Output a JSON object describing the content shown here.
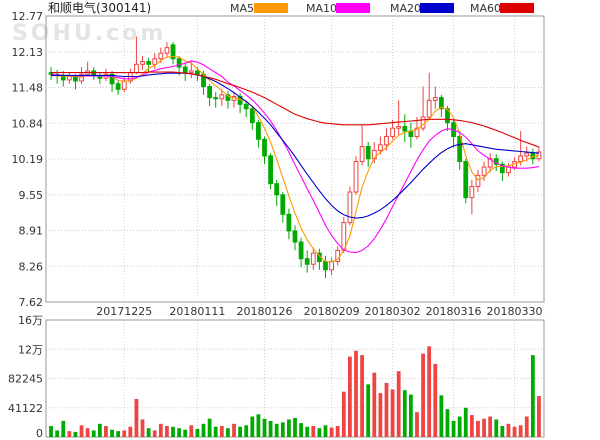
{
  "watermark": "SOHU.com",
  "chart_data": {
    "type": "candlestick",
    "title": "和顺电气(300141)",
    "legend": [
      {
        "name": "MA5",
        "color": "#ff9900"
      },
      {
        "name": "MA10",
        "color": "#ff00ff"
      },
      {
        "name": "MA20",
        "color": "#0000cc"
      },
      {
        "name": "MA60",
        "color": "#dd0000"
      }
    ],
    "price_axis": {
      "ticks": [
        "12.77",
        "12.13",
        "11.48",
        "10.84",
        "10.19",
        "9.55",
        "8.91",
        "8.26",
        "7.62"
      ],
      "ylim": [
        7.62,
        12.77
      ]
    },
    "volume_axis": {
      "ticks": [
        "16万",
        "12万",
        "82245",
        "41122",
        "0"
      ],
      "ylim": [
        0,
        160000
      ]
    },
    "date_labels": [
      {
        "label": "20171225",
        "index": 12
      },
      {
        "label": "20180111",
        "index": 24
      },
      {
        "label": "20180126",
        "index": 35
      },
      {
        "label": "20180209",
        "index": 46
      },
      {
        "label": "20180302",
        "index": 56
      },
      {
        "label": "20180316",
        "index": 66
      },
      {
        "label": "20180330",
        "index": 76
      }
    ],
    "colors": {
      "up": "#ee4444",
      "down": "#00aa00"
    },
    "candles": [
      [
        11.75,
        11.72,
        11.85,
        11.62
      ],
      [
        11.72,
        11.7,
        11.8,
        11.55
      ],
      [
        11.7,
        11.62,
        11.78,
        11.5
      ],
      [
        11.62,
        11.68,
        11.75,
        11.55
      ],
      [
        11.68,
        11.6,
        11.72,
        11.45
      ],
      [
        11.6,
        11.72,
        11.85,
        11.55
      ],
      [
        11.72,
        11.78,
        11.95,
        11.68
      ],
      [
        11.78,
        11.7,
        11.85,
        11.62
      ],
      [
        11.7,
        11.65,
        11.75,
        11.55
      ],
      [
        11.65,
        11.72,
        11.82,
        11.6
      ],
      [
        11.72,
        11.55,
        11.78,
        11.4
      ],
      [
        11.55,
        11.45,
        11.6,
        11.35
      ],
      [
        11.45,
        11.6,
        11.68,
        11.4
      ],
      [
        11.6,
        11.75,
        11.82,
        11.55
      ],
      [
        11.75,
        11.9,
        12.4,
        11.72
      ],
      [
        11.9,
        11.95,
        12.05,
        11.8
      ],
      [
        11.95,
        11.9,
        12.02,
        11.75
      ],
      [
        11.9,
        12.0,
        12.1,
        11.82
      ],
      [
        12.0,
        12.1,
        12.2,
        11.92
      ],
      [
        12.1,
        12.2,
        12.3,
        12.02
      ],
      [
        12.25,
        12.0,
        12.3,
        11.9
      ],
      [
        12.0,
        11.85,
        12.05,
        11.7
      ],
      [
        11.85,
        11.75,
        11.92,
        11.6
      ],
      [
        11.75,
        11.78,
        11.95,
        11.65
      ],
      [
        11.78,
        11.72,
        11.85,
        11.6
      ],
      [
        11.72,
        11.5,
        11.78,
        11.35
      ],
      [
        11.5,
        11.3,
        11.55,
        11.15
      ],
      [
        11.3,
        11.28,
        11.4,
        11.12
      ],
      [
        11.28,
        11.35,
        11.45,
        11.15
      ],
      [
        11.35,
        11.25,
        11.42,
        11.1
      ],
      [
        11.25,
        11.32,
        11.4,
        11.12
      ],
      [
        11.32,
        11.18,
        11.38,
        11.02
      ],
      [
        11.18,
        11.1,
        11.25,
        10.95
      ],
      [
        11.1,
        10.85,
        11.15,
        10.72
      ],
      [
        10.85,
        10.55,
        10.9,
        10.4
      ],
      [
        10.55,
        10.25,
        10.6,
        10.1
      ],
      [
        10.25,
        9.75,
        10.3,
        9.65
      ],
      [
        9.75,
        9.55,
        9.82,
        9.35
      ],
      [
        9.55,
        9.2,
        9.6,
        9.05
      ],
      [
        9.2,
        8.9,
        9.3,
        8.75
      ],
      [
        8.9,
        8.7,
        9.0,
        8.55
      ],
      [
        8.7,
        8.4,
        8.78,
        8.25
      ],
      [
        8.4,
        8.3,
        8.55,
        8.15
      ],
      [
        8.3,
        8.5,
        8.6,
        8.2
      ],
      [
        8.5,
        8.35,
        8.58,
        8.2
      ],
      [
        8.35,
        8.2,
        8.45,
        8.05
      ],
      [
        8.2,
        8.35,
        8.42,
        8.1
      ],
      [
        8.35,
        8.55,
        8.62,
        8.28
      ],
      [
        8.55,
        9.05,
        9.15,
        8.5
      ],
      [
        9.05,
        9.6,
        9.7,
        9.0
      ],
      [
        9.6,
        10.15,
        10.25,
        9.55
      ],
      [
        10.15,
        10.42,
        10.8,
        10.08
      ],
      [
        10.42,
        10.2,
        10.5,
        10.05
      ],
      [
        10.2,
        10.35,
        10.5,
        10.12
      ],
      [
        10.35,
        10.45,
        10.6,
        10.28
      ],
      [
        10.45,
        10.6,
        10.75,
        10.35
      ],
      [
        10.6,
        10.75,
        10.9,
        10.55
      ],
      [
        10.75,
        10.78,
        11.25,
        10.62
      ],
      [
        10.78,
        10.7,
        11.0,
        10.5
      ],
      [
        10.7,
        10.6,
        10.85,
        10.4
      ],
      [
        10.6,
        10.75,
        10.95,
        10.55
      ],
      [
        10.75,
        10.95,
        11.5,
        10.7
      ],
      [
        10.95,
        11.25,
        11.75,
        10.9
      ],
      [
        11.25,
        11.3,
        11.5,
        11.1
      ],
      [
        11.3,
        11.1,
        11.35,
        10.95
      ],
      [
        11.1,
        10.85,
        11.15,
        10.7
      ],
      [
        10.85,
        10.6,
        10.9,
        10.4
      ],
      [
        10.6,
        10.15,
        10.7,
        10.0
      ],
      [
        10.15,
        9.5,
        10.2,
        9.4
      ],
      [
        9.5,
        9.7,
        9.82,
        9.2
      ],
      [
        9.7,
        9.9,
        10.0,
        9.6
      ],
      [
        9.9,
        10.05,
        10.15,
        9.8
      ],
      [
        10.05,
        10.2,
        10.3,
        9.95
      ],
      [
        10.2,
        10.1,
        10.28,
        9.98
      ],
      [
        10.1,
        9.95,
        10.15,
        9.8
      ],
      [
        9.95,
        10.05,
        10.12,
        9.88
      ],
      [
        10.05,
        10.15,
        10.22,
        10.0
      ],
      [
        10.15,
        10.25,
        10.7,
        10.08
      ],
      [
        10.25,
        10.3,
        10.42,
        10.15
      ],
      [
        10.3,
        10.2,
        10.38,
        10.1
      ],
      [
        10.2,
        10.32,
        10.42,
        10.15
      ]
    ],
    "volume": [
      15000,
      9000,
      22000,
      8000,
      7000,
      16000,
      12000,
      9000,
      18000,
      15000,
      10000,
      8000,
      9000,
      14000,
      52000,
      24000,
      12000,
      9000,
      18000,
      15000,
      14000,
      12000,
      10000,
      16000,
      11000,
      18000,
      25000,
      14000,
      15000,
      12000,
      18000,
      14000,
      16000,
      28000,
      31000,
      25000,
      22000,
      18000,
      20000,
      24000,
      26000,
      19000,
      14000,
      15000,
      12000,
      16000,
      13000,
      15000,
      62000,
      110000,
      118000,
      112000,
      72000,
      88000,
      60000,
      74000,
      65000,
      90000,
      64000,
      58000,
      34000,
      114000,
      124000,
      100000,
      57000,
      38000,
      22000,
      28000,
      40000,
      30000,
      22000,
      25000,
      28000,
      24000,
      15000,
      18000,
      14000,
      16000,
      28000,
      112000,
      56000
    ],
    "ma": {
      "MA5": [
        11.7,
        11.69,
        11.69,
        11.68,
        11.68,
        11.67,
        11.7,
        11.7,
        11.69,
        11.71,
        11.68,
        11.61,
        11.59,
        11.61,
        11.65,
        11.73,
        11.83,
        11.88,
        11.97,
        12.03,
        12.04,
        12.03,
        11.96,
        11.92,
        11.82,
        11.72,
        11.61,
        11.51,
        11.43,
        11.33,
        11.3,
        11.27,
        11.24,
        11.14,
        10.96,
        10.75,
        10.5,
        10.19,
        9.86,
        9.53,
        9.22,
        8.95,
        8.74,
        8.58,
        8.45,
        8.35,
        8.34,
        8.39,
        8.55,
        8.81,
        9.25,
        9.69,
        9.98,
        10.22,
        10.31,
        10.4,
        10.52,
        10.62,
        10.68,
        10.7,
        10.73,
        10.82,
        10.91,
        11.06,
        11.13,
        11.09,
        10.94,
        10.65,
        10.25,
        9.96,
        9.82,
        9.86,
        9.99,
        10.06,
        10.06,
        10.07,
        10.11,
        10.14,
        10.18,
        10.24,
        10.26
      ],
      "MA10": [
        11.72,
        11.71,
        11.7,
        11.7,
        11.69,
        11.69,
        11.69,
        11.69,
        11.69,
        11.69,
        11.68,
        11.66,
        11.64,
        11.64,
        11.66,
        11.7,
        11.76,
        11.79,
        11.82,
        11.84,
        11.86,
        11.89,
        11.92,
        11.96,
        11.94,
        11.89,
        11.82,
        11.75,
        11.68,
        11.58,
        11.51,
        11.43,
        11.35,
        11.26,
        11.15,
        11.02,
        10.88,
        10.71,
        10.52,
        10.32,
        10.09,
        9.88,
        9.66,
        9.45,
        9.23,
        9.0,
        8.82,
        8.67,
        8.56,
        8.52,
        8.51,
        8.55,
        8.63,
        8.76,
        8.93,
        9.12,
        9.34,
        9.55,
        9.76,
        9.97,
        10.18,
        10.36,
        10.52,
        10.62,
        10.7,
        10.74,
        10.72,
        10.67,
        10.59,
        10.47,
        10.34,
        10.26,
        10.19,
        10.12,
        10.07,
        10.05,
        10.03,
        10.03,
        10.03,
        10.04,
        10.06
      ],
      "MA20": [
        11.7,
        11.7,
        11.7,
        11.7,
        11.7,
        11.7,
        11.7,
        11.7,
        11.7,
        11.7,
        11.7,
        11.69,
        11.68,
        11.68,
        11.68,
        11.69,
        11.71,
        11.72,
        11.73,
        11.74,
        11.74,
        11.74,
        11.74,
        11.73,
        11.71,
        11.68,
        11.64,
        11.59,
        11.53,
        11.46,
        11.39,
        11.31,
        11.23,
        11.14,
        11.04,
        10.93,
        10.81,
        10.67,
        10.53,
        10.39,
        10.24,
        10.08,
        9.92,
        9.77,
        9.62,
        9.48,
        9.36,
        9.26,
        9.19,
        9.15,
        9.13,
        9.14,
        9.17,
        9.22,
        9.28,
        9.36,
        9.45,
        9.55,
        9.66,
        9.77,
        9.89,
        10.01,
        10.12,
        10.22,
        10.31,
        10.38,
        10.43,
        10.46,
        10.47,
        10.45,
        10.43,
        10.41,
        10.39,
        10.37,
        10.36,
        10.35,
        10.34,
        10.33,
        10.32,
        10.31,
        10.3
      ],
      "MA60": [
        11.75,
        11.75,
        11.75,
        11.75,
        11.75,
        11.75,
        11.75,
        11.75,
        11.75,
        11.75,
        11.75,
        11.75,
        11.75,
        11.75,
        11.75,
        11.75,
        11.76,
        11.76,
        11.76,
        11.76,
        11.76,
        11.75,
        11.74,
        11.73,
        11.71,
        11.68,
        11.66,
        11.63,
        11.59,
        11.55,
        11.52,
        11.48,
        11.44,
        11.4,
        11.35,
        11.3,
        11.24,
        11.18,
        11.12,
        11.06,
        11.0,
        10.96,
        10.92,
        10.89,
        10.86,
        10.84,
        10.83,
        10.82,
        10.81,
        10.81,
        10.81,
        10.81,
        10.81,
        10.82,
        10.83,
        10.84,
        10.85,
        10.86,
        10.87,
        10.88,
        10.89,
        10.9,
        10.91,
        10.91,
        10.91,
        10.91,
        10.9,
        10.89,
        10.87,
        10.85,
        10.82,
        10.79,
        10.75,
        10.71,
        10.67,
        10.62,
        10.58,
        10.53,
        10.49,
        10.45,
        10.41
      ]
    }
  }
}
